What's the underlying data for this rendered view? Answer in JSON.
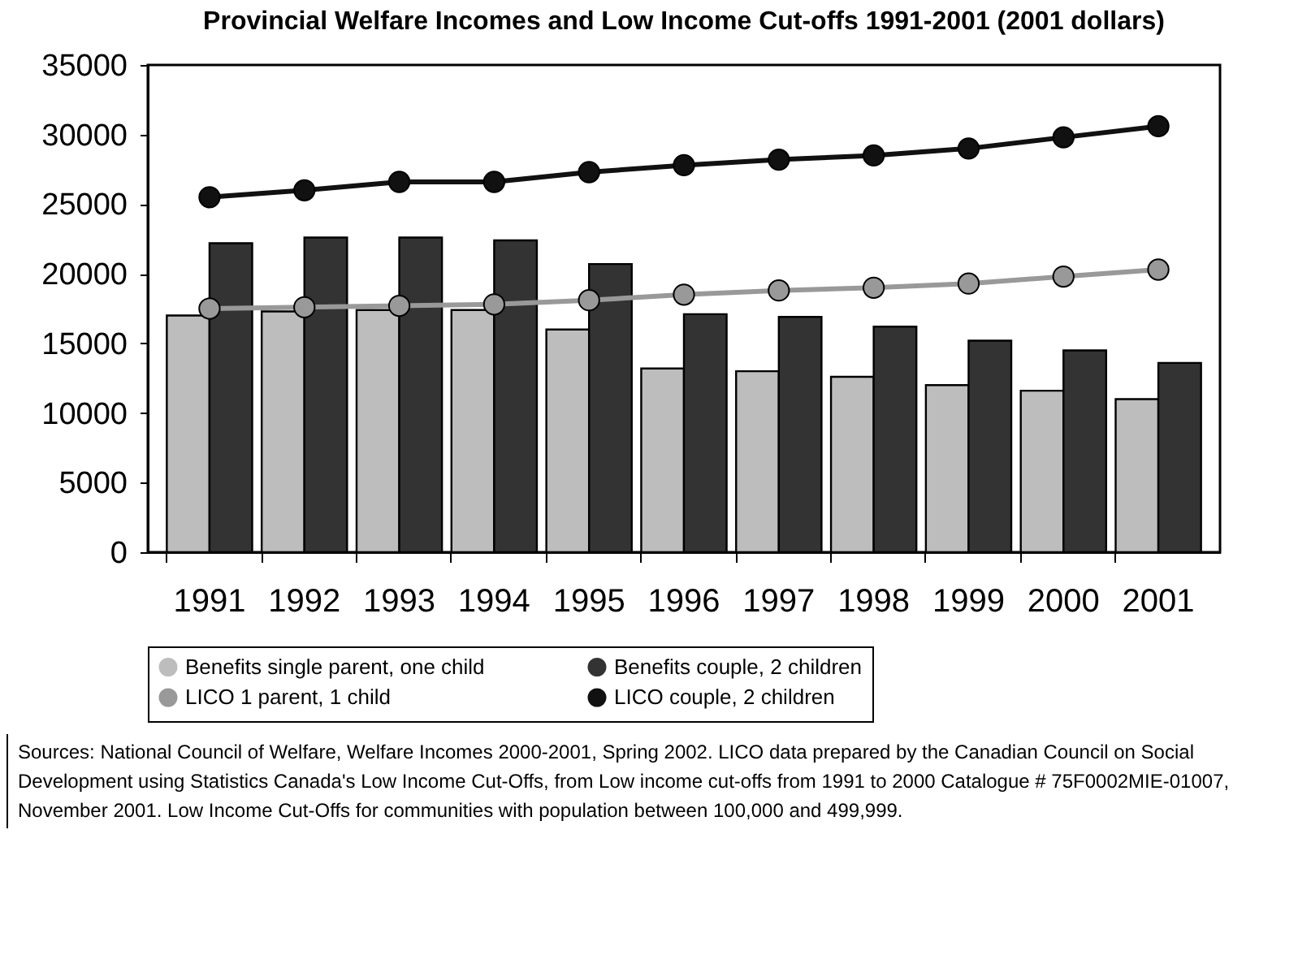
{
  "chart_data": {
    "type": "bar",
    "title": "Provincial Welfare Incomes and Low Income Cut-offs 1991-2001 (2001 dollars)",
    "categories": [
      "1991",
      "1992",
      "1993",
      "1994",
      "1995",
      "1996",
      "1997",
      "1998",
      "1999",
      "2000",
      "2001"
    ],
    "series": [
      {
        "name": "Benefits single parent, one child",
        "type": "bar",
        "color": "#bdbdbd",
        "values": [
          17000,
          17300,
          17400,
          17400,
          16000,
          13200,
          13000,
          12600,
          12000,
          11600,
          11000
        ]
      },
      {
        "name": "Benefits couple, 2 children",
        "type": "bar",
        "color": "#333333",
        "values": [
          22200,
          22600,
          22600,
          22400,
          20700,
          17100,
          16900,
          16200,
          15200,
          14500,
          13600
        ]
      },
      {
        "name": "LICO 1 parent, 1 child",
        "type": "line",
        "color": "#999999",
        "values": [
          17500,
          17600,
          17700,
          17800,
          18100,
          18500,
          18800,
          19000,
          19300,
          19800,
          20300
        ]
      },
      {
        "name": "LICO couple, 2 children",
        "type": "line",
        "color": "#111111",
        "values": [
          25500,
          26000,
          26600,
          26600,
          27300,
          27800,
          28200,
          28500,
          29000,
          29800,
          30600
        ]
      }
    ],
    "ylim": [
      0,
      35000
    ],
    "yticks": [
      0,
      5000,
      10000,
      15000,
      20000,
      25000,
      30000,
      35000
    ],
    "grid": false,
    "legend": "bottom",
    "marker": "circle",
    "line_style": "solid",
    "annotations": [
      "Sources: National Council of Welfare, Welfare Incomes 2000-2001, Spring 2002. LICO data prepared by the Canadian Council on Social Development using Statistics Canada's Low Income Cut-Offs, from Low income cut-offs from 1991 to 2000 Catalogue # 75F0002MIE-01007, November 2001. Low Income Cut-Offs for communities with population between 100,000 and 499,999."
    ]
  }
}
